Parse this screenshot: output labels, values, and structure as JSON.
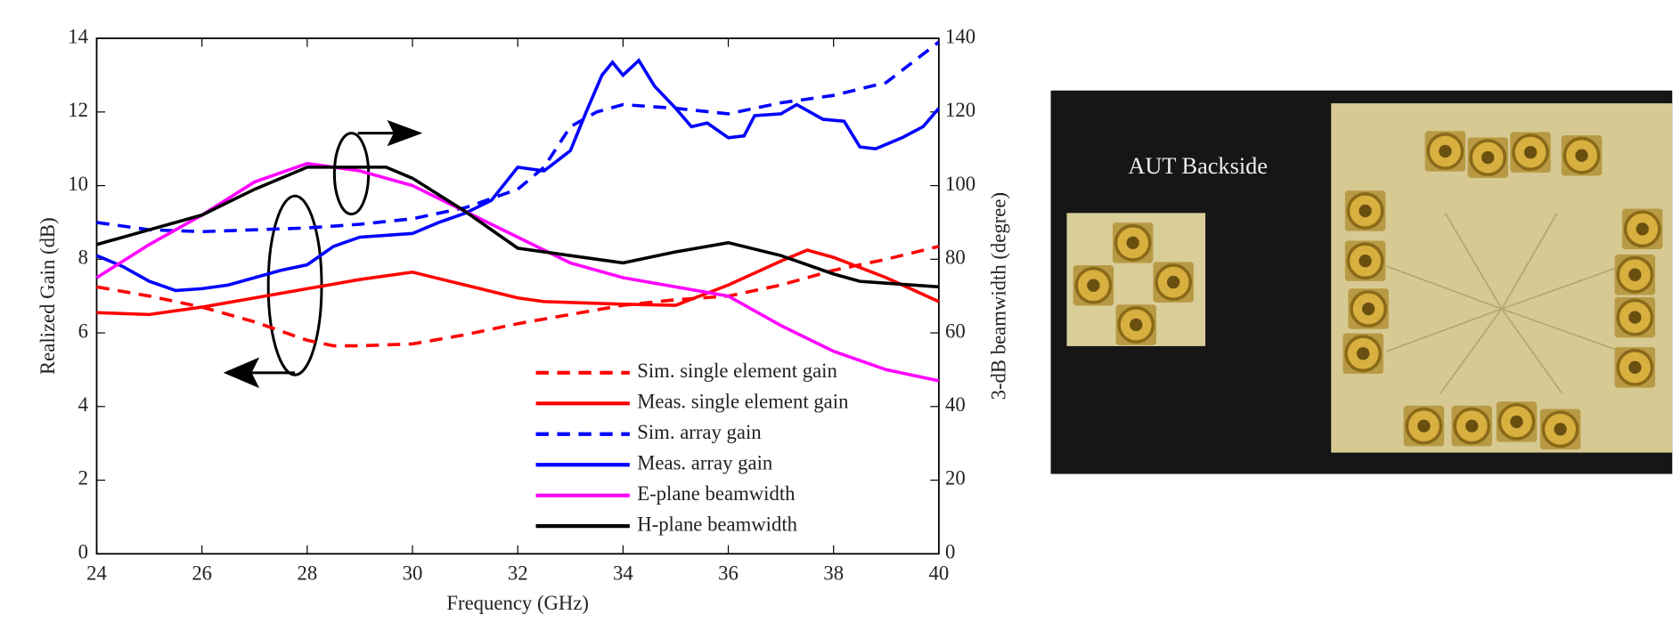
{
  "chart_data": {
    "type": "line",
    "xlabel": "Frequency (GHz)",
    "ylabel": "Realized Gain (dB)",
    "y2label": "3-dB beamwidth (degree)",
    "xlim": [
      24,
      40
    ],
    "xticks": [
      24,
      26,
      28,
      30,
      32,
      34,
      36,
      38,
      40
    ],
    "ylim": [
      0,
      14
    ],
    "yticks": [
      0,
      2,
      4,
      6,
      8,
      10,
      12,
      14
    ],
    "y2lim": [
      0,
      140
    ],
    "y2ticks": [
      0,
      20,
      40,
      60,
      80,
      100,
      120,
      140
    ],
    "legend": "lower right",
    "series": [
      {
        "name": "Sim. single element gain",
        "color": "#ff0000",
        "dashed": true,
        "x": [
          24,
          25,
          26,
          27,
          28,
          28.5,
          29,
          30,
          31,
          32,
          33,
          34,
          35,
          36,
          37,
          38,
          39,
          40
        ],
        "values": [
          7.25,
          7.0,
          6.7,
          6.3,
          5.8,
          5.65,
          5.65,
          5.7,
          5.95,
          6.25,
          6.5,
          6.75,
          6.9,
          7.0,
          7.3,
          7.7,
          8.0,
          8.35
        ]
      },
      {
        "name": "Meas. single element  gain",
        "color": "#ff0000",
        "dashed": false,
        "x": [
          24,
          25,
          26,
          27,
          28,
          29,
          30,
          31,
          32,
          32.5,
          34,
          35,
          36,
          37,
          37.5,
          38,
          39,
          40
        ],
        "values": [
          6.55,
          6.5,
          6.7,
          6.95,
          7.2,
          7.45,
          7.65,
          7.3,
          6.95,
          6.85,
          6.78,
          6.75,
          7.3,
          7.95,
          8.25,
          8.05,
          7.5,
          6.85
        ]
      },
      {
        "name": "Sim. array gain",
        "color": "#0000ff",
        "dashed": true,
        "x": [
          24,
          25,
          26,
          27,
          28,
          29,
          30,
          31,
          32,
          32.5,
          33,
          33.5,
          34,
          35,
          36,
          37,
          38,
          39,
          40
        ],
        "values": [
          9.0,
          8.8,
          8.75,
          8.8,
          8.85,
          8.95,
          9.1,
          9.4,
          9.9,
          10.5,
          11.6,
          12.0,
          12.2,
          12.1,
          11.95,
          12.25,
          12.45,
          12.8,
          13.9
        ]
      },
      {
        "name": "Meas. array gain",
        "color": "#0000ff",
        "dashed": false,
        "x": [
          24,
          24.5,
          25,
          25.5,
          26,
          26.5,
          27,
          27.5,
          28,
          28.5,
          29,
          30,
          30.5,
          31,
          31.5,
          32,
          32.5,
          33,
          33.3,
          33.6,
          33.8,
          34,
          34.3,
          34.6,
          35,
          35.3,
          35.6,
          36,
          36.3,
          36.5,
          37,
          37.3,
          37.8,
          38.2,
          38.5,
          38.8,
          39.3,
          39.7,
          40
        ],
        "values": [
          8.1,
          7.8,
          7.4,
          7.15,
          7.2,
          7.3,
          7.5,
          7.7,
          7.85,
          8.35,
          8.6,
          8.7,
          9.0,
          9.25,
          9.6,
          10.5,
          10.4,
          10.95,
          12.0,
          13.0,
          13.35,
          13.0,
          13.4,
          12.7,
          12.1,
          11.6,
          11.7,
          11.3,
          11.35,
          11.9,
          11.95,
          12.2,
          11.8,
          11.75,
          11.05,
          11.0,
          11.3,
          11.6,
          12.1
        ]
      },
      {
        "name": "E-plane beamwidth",
        "color": "#ff00ff",
        "dashed": false,
        "axis": "y2",
        "x": [
          24,
          25,
          26,
          27,
          28,
          29,
          30,
          31,
          32,
          33,
          34,
          35,
          36,
          37,
          38,
          39,
          40
        ],
        "values": [
          75,
          84,
          92,
          101,
          106,
          104,
          100,
          93,
          86,
          79,
          75,
          72.5,
          70,
          62,
          55,
          50,
          47
        ]
      },
      {
        "name": "H-plane beamwidth",
        "color": "#000000",
        "dashed": false,
        "axis": "y2",
        "x": [
          24,
          25,
          26,
          27,
          28,
          29,
          29.5,
          30,
          31,
          32,
          33,
          34,
          35,
          36,
          37,
          38,
          38.5,
          39,
          40
        ],
        "values": [
          84,
          88,
          92,
          99,
          105,
          105,
          105,
          102,
          93,
          83,
          81,
          79,
          82,
          84.5,
          81,
          76,
          74,
          73.5,
          72.5
        ]
      }
    ]
  },
  "photo": {
    "caption": "AUT Backside"
  }
}
